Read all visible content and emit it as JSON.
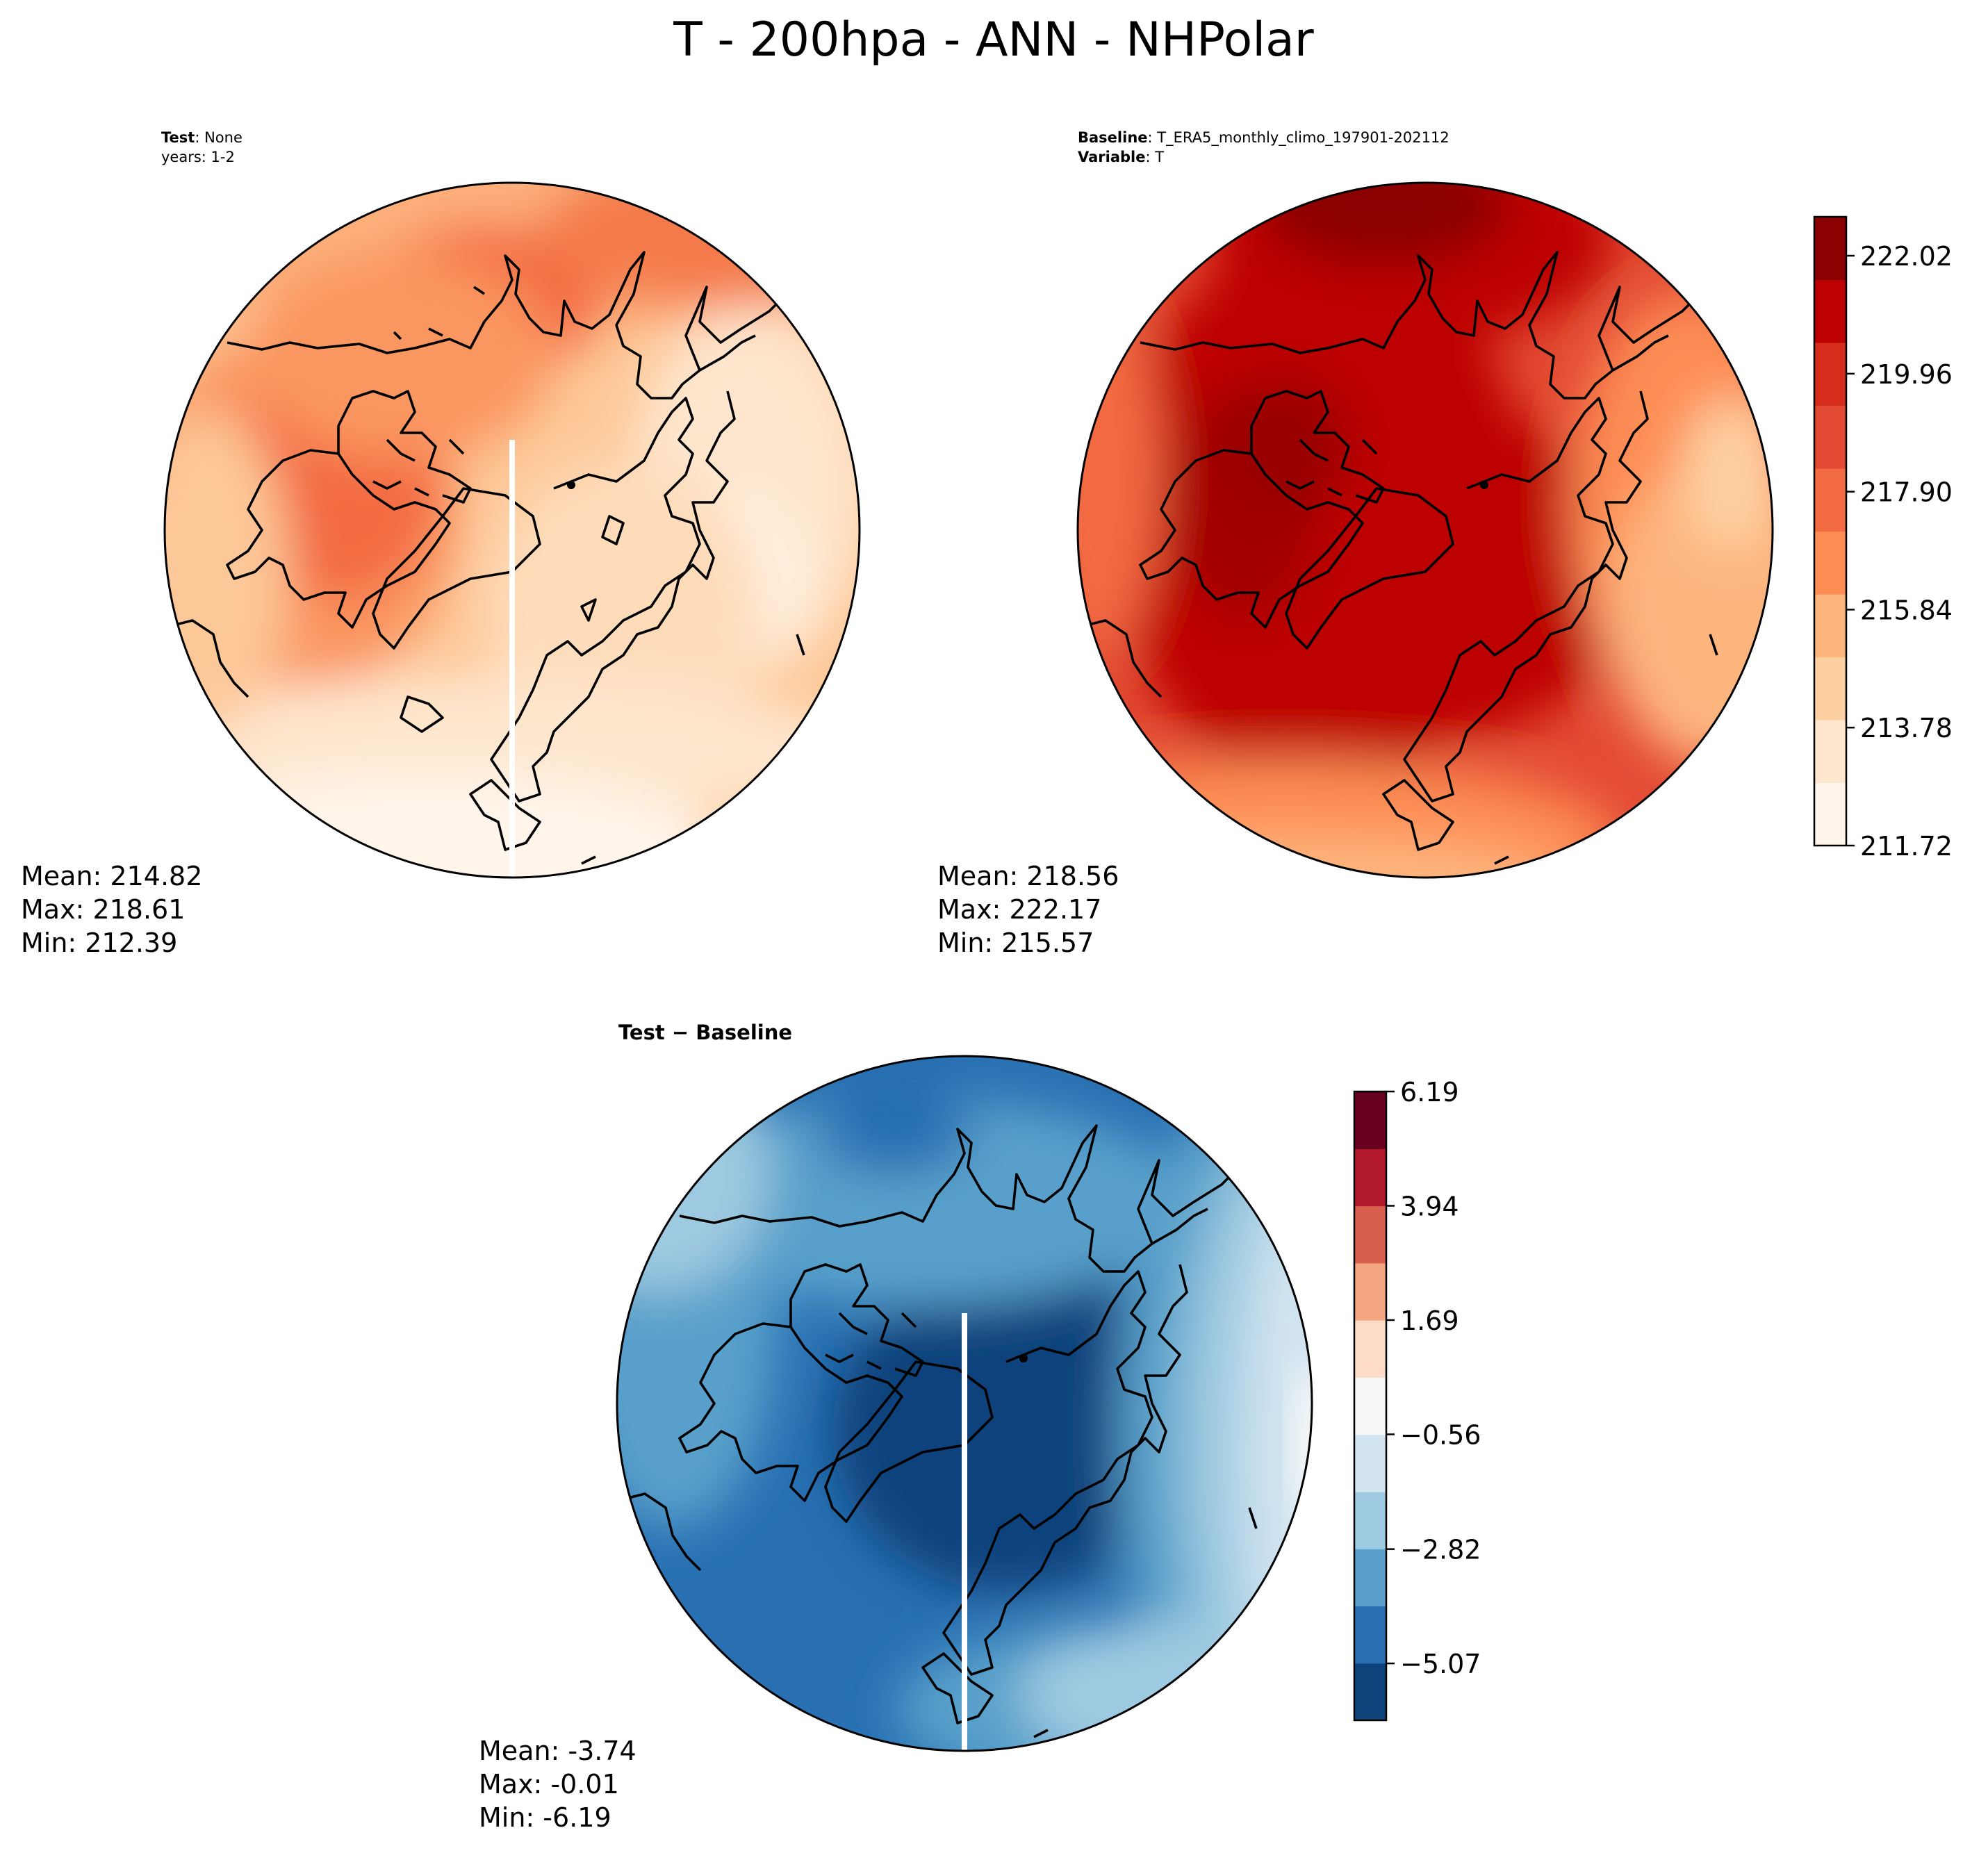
{
  "chart_data": {
    "type": "heatmap",
    "title": "T - 200hpa - ANN - NHPolar",
    "panels": [
      {
        "id": "test",
        "header": [
          {
            "bold": "Test",
            "rest": ": None"
          },
          {
            "bold": "",
            "rest": "years: 1-2"
          }
        ],
        "stats": [
          "Mean: 214.82",
          "Max: 218.61",
          "Min: 212.39"
        ],
        "mean": 214.82,
        "max": 218.61,
        "min": 212.39,
        "colormap": "OrRd-like (shared with Baseline)"
      },
      {
        "id": "baseline",
        "header": [
          {
            "bold": "Baseline",
            "rest": ": T_ERA5_monthly_climo_197901-202112"
          },
          {
            "bold": "Variable",
            "rest": ": T"
          }
        ],
        "stats": [
          "Mean: 218.56",
          "Max: 222.17",
          "Min: 215.57"
        ],
        "mean": 218.56,
        "max": 222.17,
        "min": 215.57,
        "colorbar": {
          "ticks": [
            "211.72",
            "213.78",
            "215.84",
            "217.90",
            "219.96",
            "222.02"
          ],
          "range": [
            211.72,
            222.7
          ],
          "colors": [
            "#fff5eb",
            "#fee6ce",
            "#fdd0a2",
            "#fdb57e",
            "#fd8d55",
            "#f36b42",
            "#e34a33",
            "#d62c1c",
            "#bd0000",
            "#8b0000"
          ]
        }
      },
      {
        "id": "diff",
        "header": [
          {
            "bold": "Test − Baseline",
            "rest": ""
          }
        ],
        "stats": [
          "Mean: -3.74",
          "Max: -0.01",
          "Min: -6.19"
        ],
        "mean": -3.74,
        "max": -0.01,
        "min": -6.19,
        "colorbar": {
          "ticks": [
            "6.19",
            "3.94",
            "1.69",
            "−0.56",
            "−2.82",
            "−5.07"
          ],
          "range": [
            -6.19,
            6.19
          ],
          "colors": [
            "#0f437c",
            "#2870b2",
            "#58a0cb",
            "#9ecae1",
            "#d1e4f0",
            "#f7f7f7",
            "#fddbc7",
            "#f4a582",
            "#d6604d",
            "#b2182b",
            "#67001f"
          ]
        }
      }
    ]
  }
}
